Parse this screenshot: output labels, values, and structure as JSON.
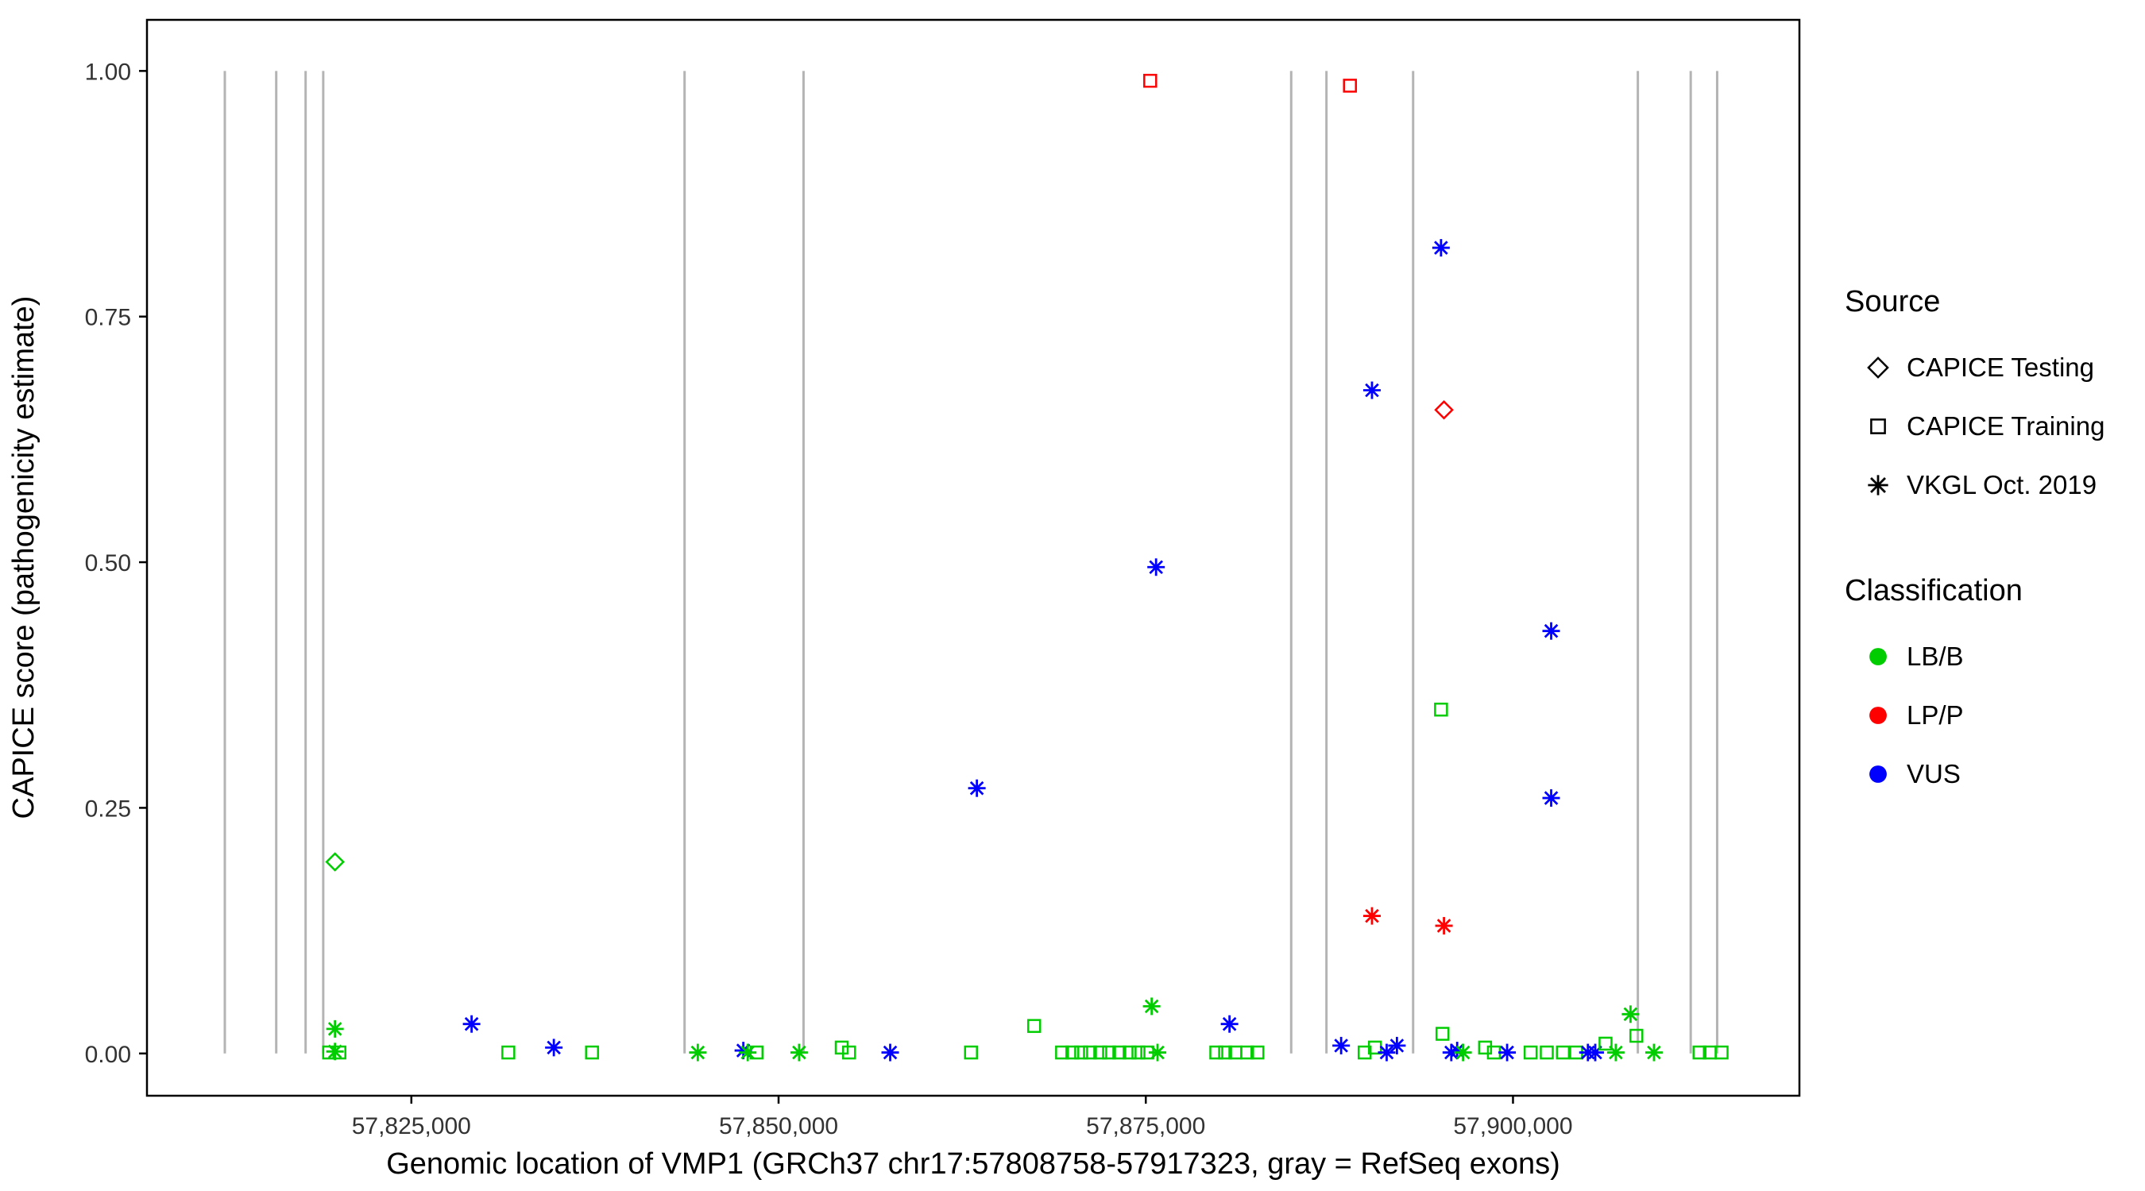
{
  "chart_data": {
    "type": "scatter",
    "title": "",
    "xlabel": "Genomic location of VMP1 (GRCh37 chr17:57808758-57917323, gray = RefSeq exons)",
    "ylabel": "CAPICE score (pathogenicity estimate)",
    "xlim": [
      57807000,
      57919500
    ],
    "ylim": [
      -0.043,
      1.052
    ],
    "grid": "off",
    "legend_position": "right",
    "x_ticks": [
      {
        "value": 57825000,
        "label": "57,825,000"
      },
      {
        "value": 57850000,
        "label": "57,850,000"
      },
      {
        "value": 57875000,
        "label": "57,875,000"
      },
      {
        "value": 57900000,
        "label": "57,900,000"
      }
    ],
    "y_ticks": [
      {
        "value": 0.0,
        "label": "0.00"
      },
      {
        "value": 0.25,
        "label": "0.25"
      },
      {
        "value": 0.5,
        "label": "0.50"
      },
      {
        "value": 0.75,
        "label": "0.75"
      },
      {
        "value": 1.0,
        "label": "1.00"
      }
    ],
    "exon_lines": {
      "description": "gray vertical lines marking RefSeq exons",
      "y_span": [
        0.0,
        1.0
      ],
      "x_positions": [
        57812300,
        57815800,
        57817800,
        57819000,
        57843600,
        57851700,
        57884900,
        57887300,
        57893200,
        57908500,
        57912100,
        57913900
      ]
    },
    "points_format": [
      "x",
      "y",
      "source",
      "classification"
    ],
    "points": [
      [
        57819400,
        0.001,
        "CAPICE Training",
        "LB/B"
      ],
      [
        57819800,
        0.195,
        "CAPICE Testing",
        "LB/B"
      ],
      [
        57819800,
        0.025,
        "VKGL Oct. 2019",
        "LB/B"
      ],
      [
        57819800,
        0.002,
        "VKGL Oct. 2019",
        "LB/B"
      ],
      [
        57820100,
        0.001,
        "CAPICE Training",
        "LB/B"
      ],
      [
        57829100,
        0.03,
        "VKGL Oct. 2019",
        "VUS"
      ],
      [
        57831600,
        0.001,
        "CAPICE Training",
        "LB/B"
      ],
      [
        57834700,
        0.006,
        "VKGL Oct. 2019",
        "VUS"
      ],
      [
        57837300,
        0.001,
        "CAPICE Training",
        "LB/B"
      ],
      [
        57844500,
        0.001,
        "VKGL Oct. 2019",
        "LB/B"
      ],
      [
        57847600,
        0.003,
        "VKGL Oct. 2019",
        "VUS"
      ],
      [
        57847900,
        0.001,
        "VKGL Oct. 2019",
        "LB/B"
      ],
      [
        57848500,
        0.001,
        "CAPICE Training",
        "LB/B"
      ],
      [
        57851400,
        0.001,
        "VKGL Oct. 2019",
        "LB/B"
      ],
      [
        57854300,
        0.006,
        "CAPICE Training",
        "LB/B"
      ],
      [
        57854800,
        0.001,
        "CAPICE Training",
        "LB/B"
      ],
      [
        57857600,
        0.001,
        "VKGL Oct. 2019",
        "VUS"
      ],
      [
        57863100,
        0.001,
        "CAPICE Training",
        "LB/B"
      ],
      [
        57863500,
        0.27,
        "VKGL Oct. 2019",
        "VUS"
      ],
      [
        57867400,
        0.028,
        "CAPICE Training",
        "LB/B"
      ],
      [
        57869300,
        0.001,
        "CAPICE Training",
        "LB/B"
      ],
      [
        57870000,
        0.001,
        "CAPICE Training",
        "LB/B"
      ],
      [
        57870600,
        0.001,
        "CAPICE Training",
        "LB/B"
      ],
      [
        57871200,
        0.001,
        "CAPICE Training",
        "LB/B"
      ],
      [
        57871900,
        0.001,
        "CAPICE Training",
        "LB/B"
      ],
      [
        57872500,
        0.001,
        "CAPICE Training",
        "LB/B"
      ],
      [
        57873200,
        0.001,
        "CAPICE Training",
        "LB/B"
      ],
      [
        57873900,
        0.001,
        "CAPICE Training",
        "LB/B"
      ],
      [
        57874500,
        0.001,
        "CAPICE Training",
        "LB/B"
      ],
      [
        57875100,
        0.001,
        "CAPICE Training",
        "LB/B"
      ],
      [
        57875300,
        0.99,
        "CAPICE Training",
        "LP/P"
      ],
      [
        57875400,
        0.048,
        "VKGL Oct. 2019",
        "LB/B"
      ],
      [
        57875700,
        0.495,
        "VKGL Oct. 2019",
        "VUS"
      ],
      [
        57875800,
        0.001,
        "VKGL Oct. 2019",
        "LB/B"
      ],
      [
        57879800,
        0.001,
        "CAPICE Training",
        "LB/B"
      ],
      [
        57880400,
        0.001,
        "CAPICE Training",
        "LB/B"
      ],
      [
        57880700,
        0.03,
        "VKGL Oct. 2019",
        "VUS"
      ],
      [
        57881100,
        0.001,
        "CAPICE Training",
        "LB/B"
      ],
      [
        57881900,
        0.001,
        "CAPICE Training",
        "LB/B"
      ],
      [
        57882600,
        0.001,
        "CAPICE Training",
        "LB/B"
      ],
      [
        57888300,
        0.008,
        "VKGL Oct. 2019",
        "VUS"
      ],
      [
        57888900,
        0.985,
        "CAPICE Training",
        "LP/P"
      ],
      [
        57889900,
        0.001,
        "CAPICE Training",
        "LB/B"
      ],
      [
        57890400,
        0.675,
        "VKGL Oct. 2019",
        "VUS"
      ],
      [
        57890400,
        0.14,
        "VKGL Oct. 2019",
        "LP/P"
      ],
      [
        57890600,
        0.006,
        "CAPICE Training",
        "LB/B"
      ],
      [
        57891400,
        0.001,
        "VKGL Oct. 2019",
        "VUS"
      ],
      [
        57892100,
        0.008,
        "VKGL Oct. 2019",
        "VUS"
      ],
      [
        57895100,
        0.82,
        "VKGL Oct. 2019",
        "VUS"
      ],
      [
        57895100,
        0.35,
        "CAPICE Training",
        "LB/B"
      ],
      [
        57895200,
        0.02,
        "CAPICE Training",
        "LB/B"
      ],
      [
        57895300,
        0.655,
        "CAPICE Testing",
        "LP/P"
      ],
      [
        57895300,
        0.13,
        "VKGL Oct. 2019",
        "LP/P"
      ],
      [
        57895800,
        0.001,
        "VKGL Oct. 2019",
        "VUS"
      ],
      [
        57896200,
        0.003,
        "VKGL Oct. 2019",
        "VUS"
      ],
      [
        57896600,
        0.001,
        "VKGL Oct. 2019",
        "LB/B"
      ],
      [
        57898100,
        0.006,
        "CAPICE Training",
        "LB/B"
      ],
      [
        57898700,
        0.001,
        "CAPICE Training",
        "LB/B"
      ],
      [
        57899600,
        0.001,
        "VKGL Oct. 2019",
        "VUS"
      ],
      [
        57901200,
        0.001,
        "CAPICE Training",
        "LB/B"
      ],
      [
        57902300,
        0.001,
        "CAPICE Training",
        "LB/B"
      ],
      [
        57902600,
        0.43,
        "VKGL Oct. 2019",
        "VUS"
      ],
      [
        57902600,
        0.26,
        "VKGL Oct. 2019",
        "VUS"
      ],
      [
        57903400,
        0.001,
        "CAPICE Training",
        "LB/B"
      ],
      [
        57904300,
        0.001,
        "CAPICE Training",
        "LB/B"
      ],
      [
        57905100,
        0.001,
        "VKGL Oct. 2019",
        "VUS"
      ],
      [
        57905600,
        0.001,
        "VKGL Oct. 2019",
        "VUS"
      ],
      [
        57906300,
        0.01,
        "CAPICE Training",
        "LB/B"
      ],
      [
        57907000,
        0.001,
        "VKGL Oct. 2019",
        "LB/B"
      ],
      [
        57908000,
        0.04,
        "VKGL Oct. 2019",
        "LB/B"
      ],
      [
        57908400,
        0.018,
        "CAPICE Training",
        "LB/B"
      ],
      [
        57909600,
        0.001,
        "VKGL Oct. 2019",
        "LB/B"
      ],
      [
        57912700,
        0.001,
        "CAPICE Training",
        "LB/B"
      ],
      [
        57913400,
        0.001,
        "CAPICE Training",
        "LB/B"
      ],
      [
        57914200,
        0.001,
        "CAPICE Training",
        "LB/B"
      ]
    ]
  },
  "legend": {
    "source": {
      "title": "Source",
      "items": [
        {
          "label": "CAPICE Testing",
          "shape": "diamond",
          "color": "#000000"
        },
        {
          "label": "CAPICE Training",
          "shape": "square",
          "color": "#000000"
        },
        {
          "label": "VKGL Oct. 2019",
          "shape": "asterisk",
          "color": "#000000"
        }
      ]
    },
    "classification": {
      "title": "Classification",
      "items": [
        {
          "label": "LB/B",
          "shape": "circle",
          "color": "#00cd00"
        },
        {
          "label": "LP/P",
          "shape": "circle",
          "color": "#ff0000"
        },
        {
          "label": "VUS",
          "shape": "circle",
          "color": "#0000ff"
        }
      ]
    }
  },
  "style": {
    "classification_colors": {
      "LB/B": "#00cd00",
      "LP/P": "#ff0000",
      "VUS": "#0000ff"
    },
    "source_shapes": {
      "CAPICE Testing": "diamond",
      "CAPICE Training": "square",
      "VKGL Oct. 2019": "asterisk"
    },
    "exon_line_color": "#b4b4b4",
    "panel_border_color": "#000000",
    "tick_label_color": "#333333"
  }
}
